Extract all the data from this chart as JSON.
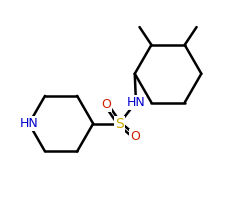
{
  "bg_color": "#ffffff",
  "line_color": "#000000",
  "N_color": "#0000cd",
  "O_color": "#cc2200",
  "S_color": "#ccaa00",
  "line_width": 1.8,
  "font_size": 9,
  "figsize": [
    2.41,
    2.14
  ],
  "dpi": 100,
  "xlim": [
    0,
    10
  ],
  "ylim": [
    0,
    9
  ]
}
